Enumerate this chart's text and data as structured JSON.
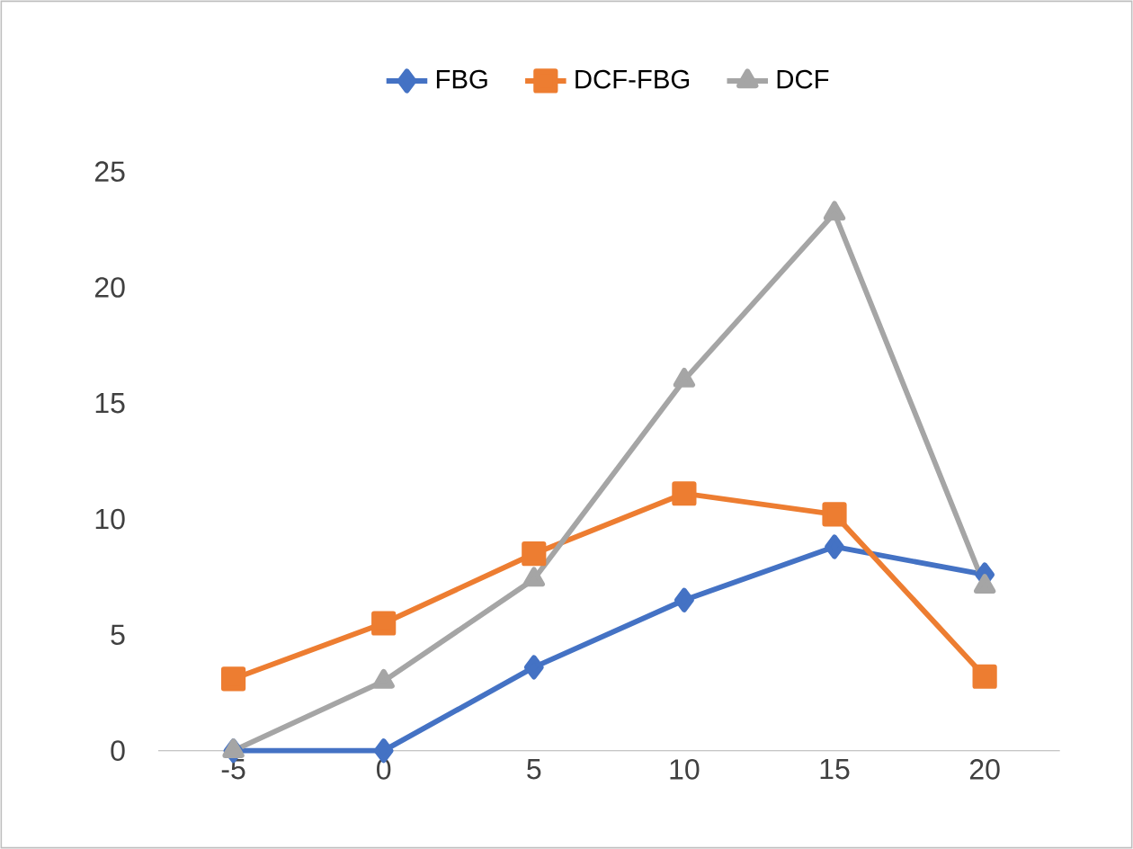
{
  "chart_data": {
    "type": "line",
    "categories": [
      "-5",
      "0",
      "5",
      "10",
      "15",
      "20"
    ],
    "ylim": [
      0,
      25
    ],
    "yticks": [
      0,
      5,
      10,
      15,
      20,
      25
    ],
    "grid": false,
    "legend": "top",
    "line_style": "solid",
    "series": [
      {
        "name": "FBG",
        "color": "#4472c4",
        "marker": "diamond",
        "values": [
          0,
          0,
          3.6,
          6.5,
          8.8,
          7.6
        ]
      },
      {
        "name": "DCF-FBG",
        "color": "#ed7d31",
        "marker": "square",
        "values": [
          3.1,
          5.5,
          8.5,
          11.1,
          10.2,
          3.2
        ]
      },
      {
        "name": "DCF",
        "color": "#a5a5a5",
        "marker": "triangle",
        "values": [
          0,
          3.0,
          7.4,
          16.0,
          23.2,
          7.1
        ]
      }
    ]
  }
}
